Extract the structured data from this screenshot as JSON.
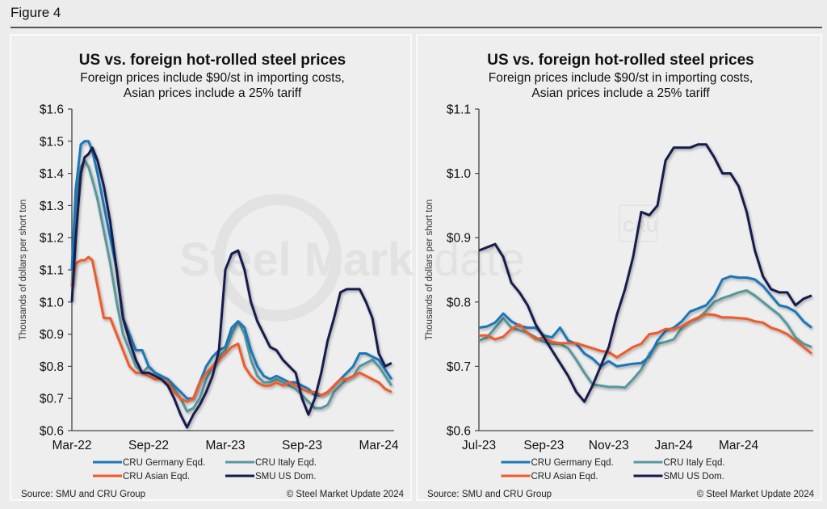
{
  "figure": {
    "title": "Figure 4"
  },
  "colors": {
    "germany": "#1a76b8",
    "italy": "#56979c",
    "asian": "#ef5a2a",
    "us": "#161a4e"
  },
  "watermark": {
    "text1": "Steel Market",
    "text2": "Update",
    "badge": "CRU"
  },
  "chart_data": [
    {
      "type": "line",
      "title": "US vs. foreign hot-rolled steel prices",
      "subtitle_line1": "Foreign prices include $90/st in importing costs,",
      "subtitle_line2": "Asian prices include a 25% tariff",
      "ylabel": "Thousands of dollars per short ton",
      "xlabel": "",
      "ylim": [
        0.6,
        1.6
      ],
      "yticks": [
        0.6,
        0.7,
        0.8,
        0.9,
        1.0,
        1.1,
        1.2,
        1.3,
        1.4,
        1.5,
        1.6
      ],
      "ytick_labels": [
        "$0.6",
        "$0.7",
        "$0.8",
        "$0.9",
        "$1.0",
        "$1.1",
        "$1.2",
        "$1.3",
        "$1.4",
        "$1.5",
        "$1.6"
      ],
      "xlim": [
        0,
        25.2
      ],
      "xticks": [
        0,
        6,
        12,
        18,
        24
      ],
      "xtick_labels": [
        "Mar-22",
        "Sep-22",
        "Mar-23",
        "Sep-23",
        "Mar-24"
      ],
      "x_unit": "months since Mar-22",
      "grid": false,
      "legend": "bottom",
      "series": [
        {
          "key": "germany",
          "name": "CRU Germany Eqd.",
          "x": [
            0,
            0.3,
            0.7,
            1.0,
            1.3,
            1.6,
            2,
            2.5,
            3,
            3.5,
            4,
            4.5,
            5,
            5.5,
            6,
            6.5,
            7,
            7.5,
            8,
            8.5,
            9,
            9.5,
            10,
            10.5,
            11,
            11.5,
            12,
            12.5,
            13,
            13.5,
            14,
            14.5,
            15,
            15.5,
            16,
            16.5,
            17,
            17.5,
            18,
            18.5,
            19,
            19.5,
            20,
            20.5,
            21,
            21.5,
            22,
            22.5,
            23,
            23.5,
            24,
            24.5,
            25
          ],
          "y": [
            1.1,
            1.35,
            1.49,
            1.5,
            1.5,
            1.47,
            1.4,
            1.3,
            1.2,
            1.1,
            0.95,
            0.9,
            0.85,
            0.85,
            0.8,
            0.78,
            0.77,
            0.76,
            0.74,
            0.72,
            0.7,
            0.7,
            0.75,
            0.8,
            0.83,
            0.85,
            0.86,
            0.92,
            0.94,
            0.92,
            0.85,
            0.8,
            0.77,
            0.76,
            0.77,
            0.76,
            0.75,
            0.75,
            0.74,
            0.73,
            0.71,
            0.71,
            0.72,
            0.74,
            0.76,
            0.78,
            0.8,
            0.84,
            0.84,
            0.83,
            0.82,
            0.79,
            0.76
          ]
        },
        {
          "key": "italy",
          "name": "CRU Italy Eqd.",
          "x": [
            0,
            0.3,
            0.7,
            1.0,
            1.3,
            1.6,
            2,
            2.5,
            3,
            3.5,
            4,
            4.5,
            5,
            5.5,
            6,
            6.5,
            7,
            7.5,
            8,
            8.5,
            9,
            9.5,
            10,
            10.5,
            11,
            11.5,
            12,
            12.5,
            13,
            13.5,
            14,
            14.5,
            15,
            15.5,
            16,
            16.5,
            17,
            17.5,
            18,
            18.5,
            19,
            19.5,
            20,
            20.5,
            21,
            21.5,
            22,
            22.5,
            23,
            23.5,
            24,
            24.5,
            25
          ],
          "y": [
            1.05,
            1.3,
            1.42,
            1.44,
            1.42,
            1.38,
            1.32,
            1.22,
            1.12,
            1.0,
            0.9,
            0.85,
            0.8,
            0.78,
            0.8,
            0.78,
            0.77,
            0.76,
            0.73,
            0.7,
            0.66,
            0.67,
            0.7,
            0.76,
            0.8,
            0.83,
            0.85,
            0.9,
            0.94,
            0.9,
            0.82,
            0.77,
            0.75,
            0.75,
            0.76,
            0.75,
            0.74,
            0.73,
            0.71,
            0.69,
            0.67,
            0.67,
            0.68,
            0.72,
            0.74,
            0.76,
            0.77,
            0.8,
            0.81,
            0.82,
            0.8,
            0.77,
            0.74
          ]
        },
        {
          "key": "asian",
          "name": "CRU Asian Eqd.",
          "x": [
            0,
            0.3,
            0.7,
            1.0,
            1.3,
            1.6,
            2,
            2.5,
            3,
            3.5,
            4,
            4.5,
            5,
            5.5,
            6,
            6.5,
            7,
            7.5,
            8,
            8.5,
            9,
            9.5,
            10,
            10.5,
            11,
            11.5,
            12,
            12.5,
            13,
            13.5,
            14,
            14.5,
            15,
            15.5,
            16,
            16.5,
            17,
            17.5,
            18,
            18.5,
            19,
            19.5,
            20,
            20.5,
            21,
            21.5,
            22,
            22.5,
            23,
            23.5,
            24,
            24.5,
            25
          ],
          "y": [
            1.05,
            1.12,
            1.13,
            1.13,
            1.14,
            1.13,
            1.05,
            0.95,
            0.95,
            0.9,
            0.85,
            0.8,
            0.78,
            0.78,
            0.77,
            0.76,
            0.76,
            0.75,
            0.72,
            0.7,
            0.69,
            0.7,
            0.75,
            0.78,
            0.8,
            0.82,
            0.84,
            0.86,
            0.87,
            0.8,
            0.77,
            0.75,
            0.74,
            0.74,
            0.75,
            0.74,
            0.75,
            0.74,
            0.73,
            0.72,
            0.72,
            0.71,
            0.72,
            0.74,
            0.76,
            0.76,
            0.77,
            0.78,
            0.77,
            0.76,
            0.75,
            0.73,
            0.72
          ]
        },
        {
          "key": "us",
          "name": "SMU US Dom.",
          "x": [
            0,
            0.3,
            0.7,
            1.0,
            1.3,
            1.6,
            2,
            2.5,
            3,
            3.5,
            4,
            4.5,
            5,
            5.5,
            6,
            6.5,
            7,
            7.5,
            8,
            8.5,
            9,
            9.5,
            10,
            10.5,
            11,
            11.5,
            12,
            12.5,
            13,
            13.5,
            14,
            14.5,
            15,
            15.5,
            16,
            16.5,
            17,
            17.5,
            18,
            18.5,
            19,
            19.5,
            20,
            20.5,
            21,
            21.5,
            22,
            22.5,
            23,
            23.5,
            24,
            24.5,
            25
          ],
          "y": [
            1.0,
            1.2,
            1.4,
            1.45,
            1.46,
            1.48,
            1.44,
            1.36,
            1.25,
            1.1,
            0.95,
            0.88,
            0.82,
            0.78,
            0.78,
            0.77,
            0.76,
            0.74,
            0.7,
            0.65,
            0.61,
            0.65,
            0.68,
            0.72,
            0.77,
            0.85,
            1.1,
            1.15,
            1.16,
            1.1,
            1.0,
            0.94,
            0.9,
            0.86,
            0.85,
            0.82,
            0.8,
            0.78,
            0.7,
            0.65,
            0.7,
            0.78,
            0.88,
            0.95,
            1.03,
            1.04,
            1.04,
            1.04,
            1.0,
            0.95,
            0.84,
            0.8,
            0.81
          ]
        }
      ],
      "source": "Source: SMU and CRU Group",
      "copyright": "© Steel Market Update 2024"
    },
    {
      "type": "line",
      "title": "US vs. foreign hot-rolled steel prices",
      "subtitle_line1": "Foreign prices include $90/st in importing costs,",
      "subtitle_line2": "Asian prices include a 25% tariff",
      "ylabel": "Thousands of dollars per short ton",
      "xlabel": "",
      "ylim": [
        0.6,
        1.1
      ],
      "yticks": [
        0.6,
        0.7,
        0.8,
        0.9,
        1.0,
        1.1
      ],
      "ytick_labels": [
        "$0.6",
        "$0.7",
        "$0.8",
        "$0.9",
        "$1.0",
        "$1.1"
      ],
      "xlim": [
        0,
        10.3
      ],
      "xticks": [
        0,
        2,
        4,
        6,
        8
      ],
      "xtick_labels": [
        "Jul-23",
        "Sep-23",
        "Nov-23",
        "Jan-24",
        "Mar-24"
      ],
      "x_unit": "months since Jul-23",
      "grid": false,
      "legend": "bottom",
      "series": [
        {
          "key": "germany",
          "name": "CRU Germany Eqd.",
          "x": [
            0,
            0.25,
            0.5,
            0.75,
            1,
            1.25,
            1.5,
            1.75,
            2,
            2.25,
            2.5,
            2.75,
            3,
            3.25,
            3.5,
            3.75,
            4,
            4.25,
            4.5,
            4.75,
            5,
            5.25,
            5.5,
            5.75,
            6,
            6.25,
            6.5,
            6.75,
            7,
            7.25,
            7.5,
            7.75,
            8,
            8.25,
            8.5,
            8.75,
            9,
            9.25,
            9.5,
            9.75,
            10,
            10.25
          ],
          "y": [
            0.76,
            0.762,
            0.768,
            0.782,
            0.77,
            0.763,
            0.76,
            0.76,
            0.748,
            0.745,
            0.76,
            0.74,
            0.735,
            0.72,
            0.712,
            0.7,
            0.708,
            0.7,
            0.702,
            0.704,
            0.705,
            0.715,
            0.74,
            0.755,
            0.76,
            0.77,
            0.785,
            0.79,
            0.795,
            0.81,
            0.835,
            0.84,
            0.838,
            0.838,
            0.835,
            0.825,
            0.81,
            0.795,
            0.792,
            0.785,
            0.77,
            0.76
          ]
        },
        {
          "key": "italy",
          "name": "CRU Italy Eqd.",
          "x": [
            0,
            0.25,
            0.5,
            0.75,
            1,
            1.25,
            1.5,
            1.75,
            2,
            2.25,
            2.5,
            2.75,
            3,
            3.25,
            3.5,
            3.75,
            4,
            4.25,
            4.5,
            4.75,
            5,
            5.25,
            5.5,
            5.75,
            6,
            6.25,
            6.5,
            6.75,
            7,
            7.25,
            7.5,
            7.75,
            8,
            8.25,
            8.5,
            8.75,
            9,
            9.25,
            9.5,
            9.75,
            10,
            10.25
          ],
          "y": [
            0.74,
            0.745,
            0.76,
            0.775,
            0.76,
            0.756,
            0.752,
            0.745,
            0.738,
            0.735,
            0.735,
            0.728,
            0.71,
            0.69,
            0.672,
            0.67,
            0.668,
            0.668,
            0.667,
            0.68,
            0.695,
            0.72,
            0.735,
            0.738,
            0.742,
            0.76,
            0.77,
            0.775,
            0.786,
            0.8,
            0.806,
            0.81,
            0.815,
            0.818,
            0.81,
            0.8,
            0.79,
            0.78,
            0.765,
            0.745,
            0.735,
            0.73
          ]
        },
        {
          "key": "asian",
          "name": "CRU Asian Eqd.",
          "x": [
            0,
            0.25,
            0.5,
            0.75,
            1,
            1.25,
            1.5,
            1.75,
            2,
            2.25,
            2.5,
            2.75,
            3,
            3.25,
            3.5,
            3.75,
            4,
            4.25,
            4.5,
            4.75,
            5,
            5.25,
            5.5,
            5.75,
            6,
            6.25,
            6.5,
            6.75,
            7,
            7.25,
            7.5,
            7.75,
            8,
            8.25,
            8.5,
            8.75,
            9,
            9.25,
            9.5,
            9.75,
            10,
            10.25
          ],
          "y": [
            0.748,
            0.748,
            0.742,
            0.746,
            0.758,
            0.765,
            0.752,
            0.742,
            0.745,
            0.738,
            0.736,
            0.736,
            0.736,
            0.732,
            0.728,
            0.724,
            0.722,
            0.714,
            0.722,
            0.73,
            0.735,
            0.75,
            0.752,
            0.758,
            0.758,
            0.762,
            0.77,
            0.776,
            0.781,
            0.78,
            0.776,
            0.776,
            0.775,
            0.774,
            0.77,
            0.768,
            0.76,
            0.756,
            0.75,
            0.74,
            0.73,
            0.72
          ]
        },
        {
          "key": "us",
          "name": "SMU US Dom.",
          "x": [
            0,
            0.25,
            0.5,
            0.75,
            1,
            1.25,
            1.5,
            1.75,
            2,
            2.25,
            2.5,
            2.75,
            3,
            3.25,
            3.5,
            3.75,
            4,
            4.25,
            4.5,
            4.75,
            5,
            5.25,
            5.5,
            5.75,
            6,
            6.25,
            6.5,
            6.75,
            7,
            7.25,
            7.5,
            7.75,
            8,
            8.25,
            8.5,
            8.75,
            9,
            9.25,
            9.5,
            9.75,
            10,
            10.25
          ],
          "y": [
            0.88,
            0.885,
            0.89,
            0.87,
            0.83,
            0.815,
            0.795,
            0.765,
            0.745,
            0.725,
            0.705,
            0.685,
            0.66,
            0.645,
            0.67,
            0.7,
            0.73,
            0.78,
            0.82,
            0.87,
            0.94,
            0.935,
            0.95,
            1.02,
            1.04,
            1.04,
            1.04,
            1.045,
            1.045,
            1.025,
            1.0,
            1.0,
            0.98,
            0.94,
            0.88,
            0.84,
            0.82,
            0.815,
            0.815,
            0.795,
            0.805,
            0.81
          ]
        }
      ],
      "source": "Source: SMU and CRU Group",
      "copyright": "© Steel Market Update 2024"
    }
  ]
}
